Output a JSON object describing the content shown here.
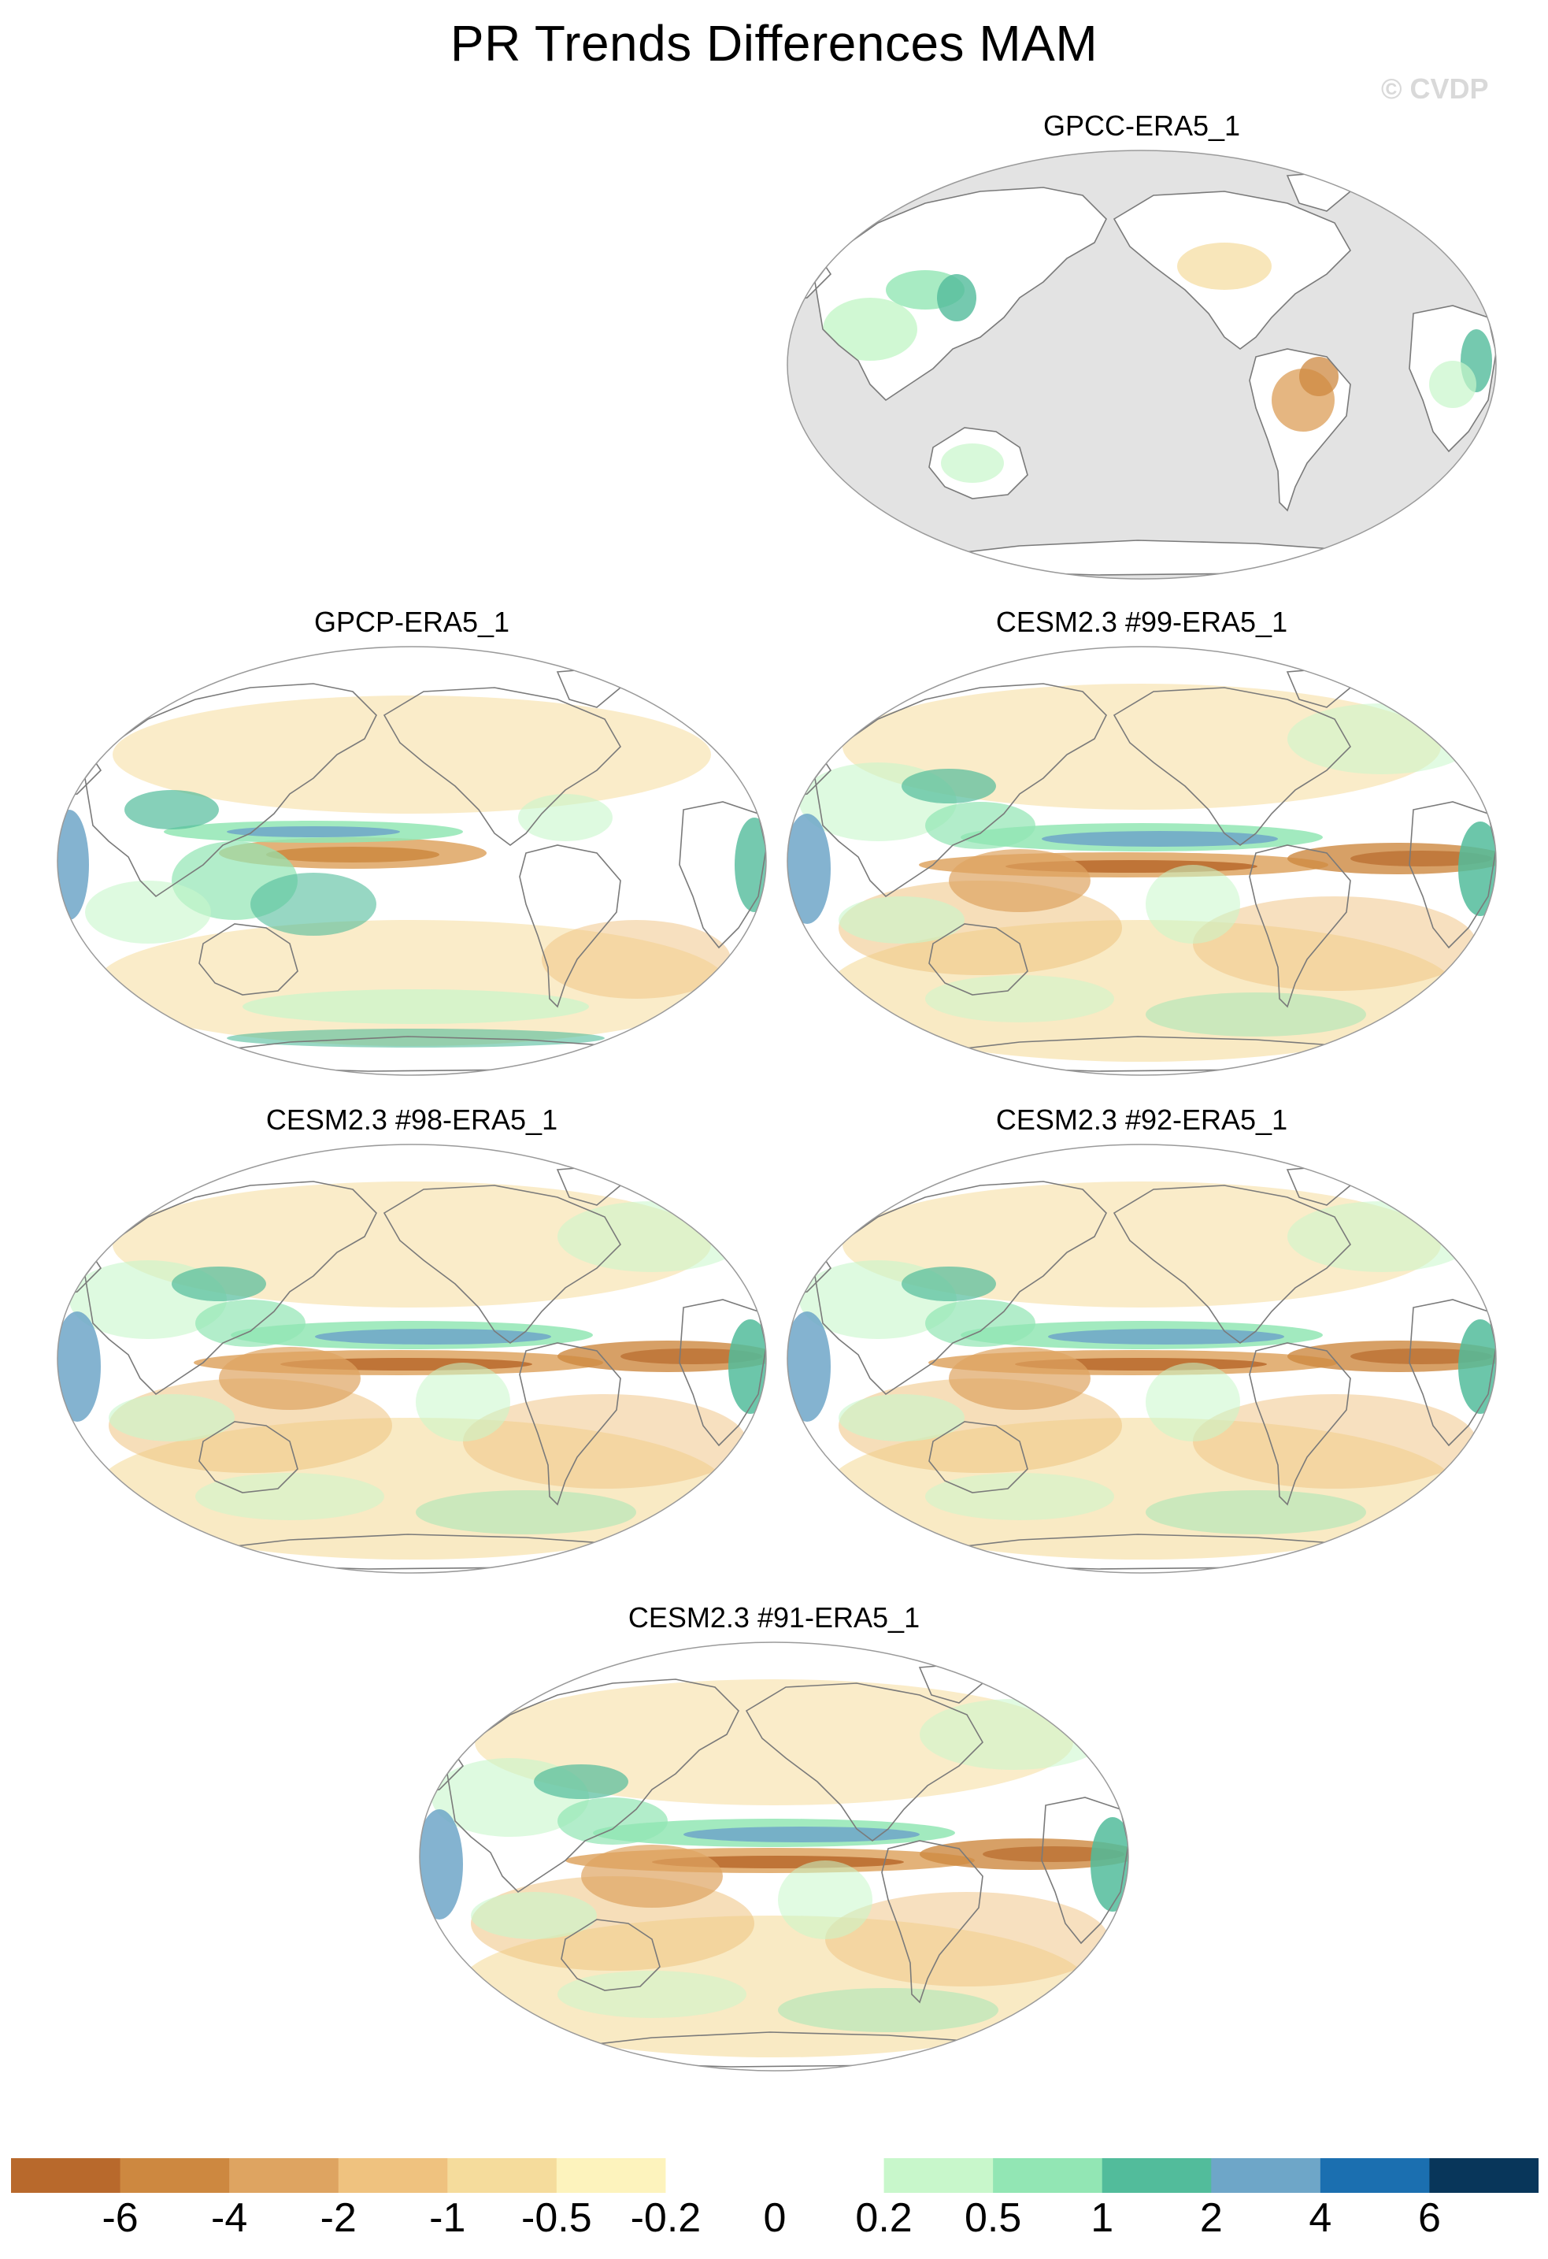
{
  "title": "PR Trends Differences MAM",
  "watermark": "© CVDP",
  "panels": [
    {
      "id": "p1",
      "title": "GPCC-ERA5_1",
      "masked_ocean": true
    },
    {
      "id": "p2",
      "title": "GPCP-ERA5_1",
      "masked_ocean": false
    },
    {
      "id": "p3",
      "title": "CESM2.3 #99-ERA5_1",
      "masked_ocean": false
    },
    {
      "id": "p4",
      "title": "CESM2.3 #98-ERA5_1",
      "masked_ocean": false
    },
    {
      "id": "p5",
      "title": "CESM2.3 #92-ERA5_1",
      "masked_ocean": false
    },
    {
      "id": "p6",
      "title": "CESM2.3 #91-ERA5_1",
      "masked_ocean": false
    }
  ],
  "colorbar": {
    "colors": [
      "#b8692c",
      "#cd8840",
      "#dea461",
      "#efc27f",
      "#f5dc9c",
      "#fdf3bd",
      "#ffffff",
      "#ffffff",
      "#c8f7cb",
      "#92e6b4",
      "#52bc9b",
      "#6ea6c8",
      "#1b6fb0",
      "#08365a"
    ],
    "labels": [
      "-6",
      "-4",
      "-2",
      "-1",
      "-0.5",
      "-0.2",
      "0",
      "0.2",
      "0.5",
      "1",
      "2",
      "4",
      "6"
    ],
    "missing_color": "#e3e3e3"
  }
}
